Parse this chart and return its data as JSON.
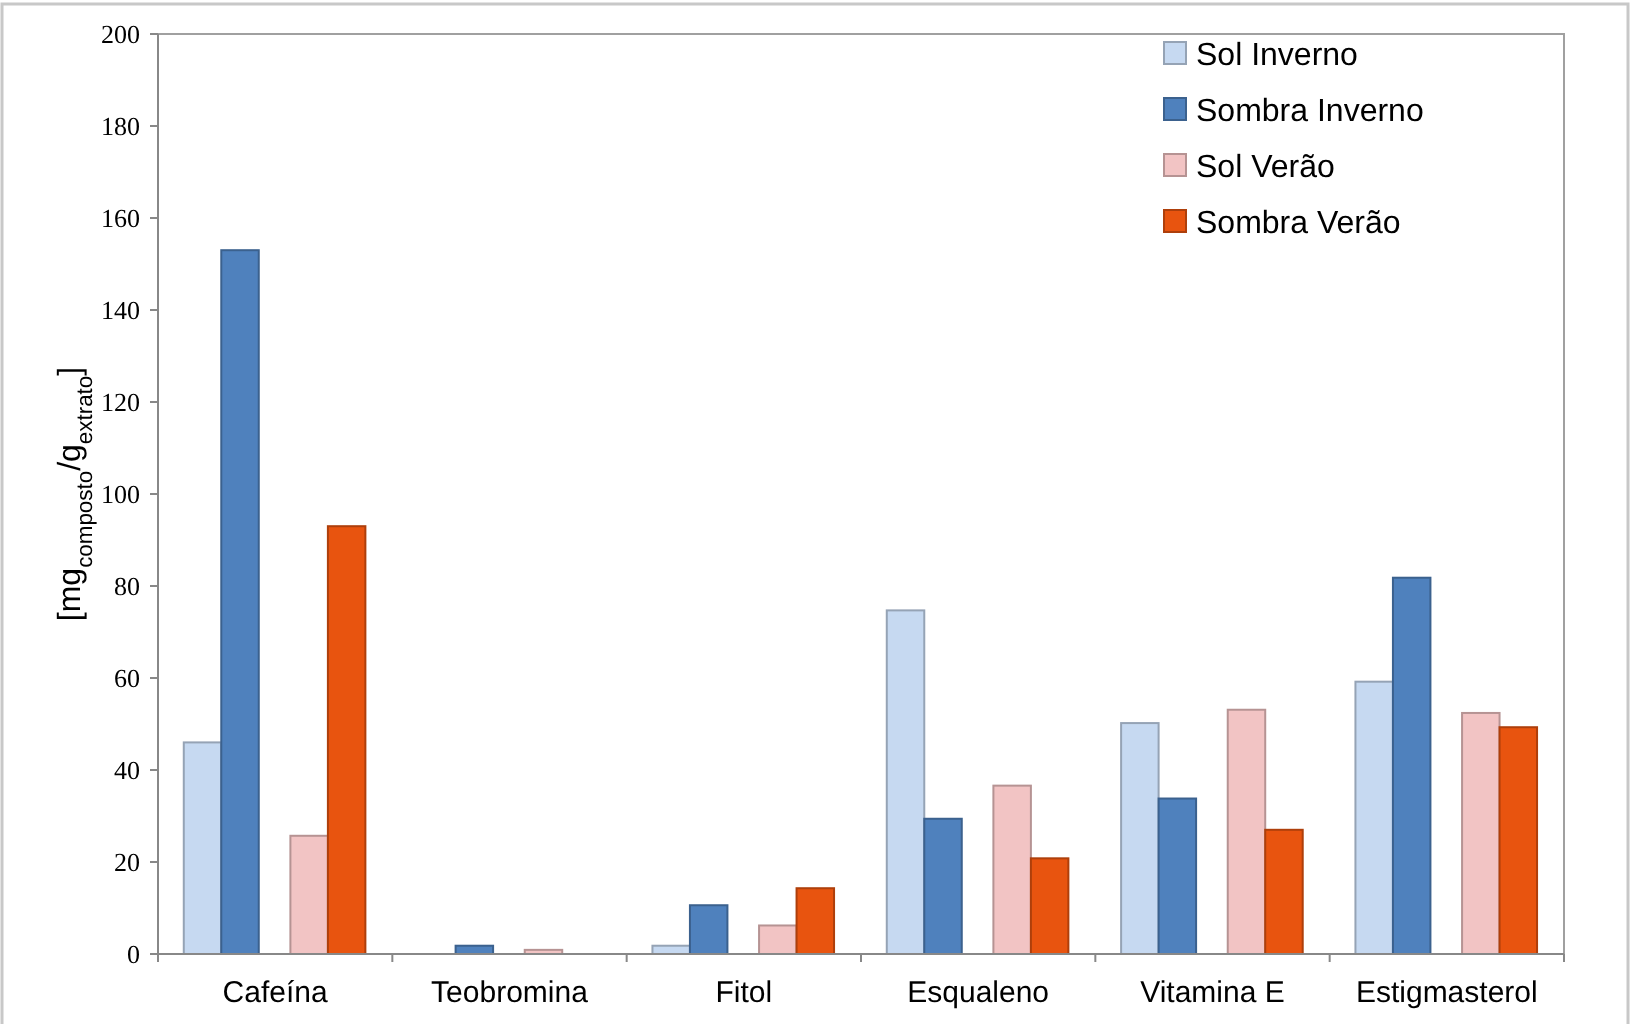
{
  "chart_data": {
    "type": "bar",
    "ylabel": "[mg$_{composto}$/g$_{extrato}$]",
    "categories": [
      "Cafeína",
      "Teobromina",
      "Fitol",
      "Esqualeno",
      "Vitamina E",
      "Estigmasterol"
    ],
    "series": [
      {
        "name": "Sol Inverno",
        "color": "#c6d9f1",
        "values": [
          46,
          0,
          1.8,
          74.7,
          50.2,
          59.2
        ]
      },
      {
        "name": "Sombra Inverno",
        "color": "#4f81bd",
        "values": [
          153,
          1.8,
          10.6,
          29.4,
          33.8,
          81.8
        ]
      },
      {
        "name": "Sol Verão",
        "color": "#f2c4c4",
        "values": [
          25.7,
          0.9,
          6.2,
          36.6,
          53.1,
          52.4
        ]
      },
      {
        "name": "Sombra Verão",
        "color": "#e8540f",
        "values": [
          93,
          0,
          14.3,
          20.8,
          27,
          49.3
        ]
      }
    ],
    "ylim": [
      0,
      200
    ],
    "yticks": [
      0,
      20,
      40,
      60,
      80,
      100,
      120,
      140,
      160,
      180,
      200
    ],
    "grid": false,
    "legend": "top right"
  }
}
